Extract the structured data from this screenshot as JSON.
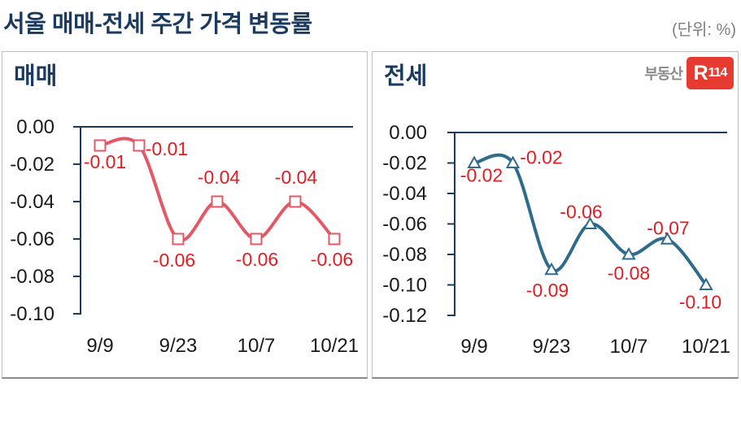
{
  "header": {
    "title": "서울 매매-전세 주간 가격 변동률",
    "unit_label": "(단위: %)"
  },
  "brand": {
    "prefix": "부동산",
    "mark_r": "R",
    "mark_num": "114"
  },
  "colors": {
    "title_navy": "#1b3a5f",
    "axis_navy": "#1b3a5f",
    "sale_line": "#e25864",
    "jeonse_line": "#2e6b8c",
    "data_label_red": "#e01d23",
    "tick_label_black": "#1a1a1a",
    "brand_red": "#e73a30",
    "brand_gray": "#8a8a8a"
  },
  "chart_data": [
    {
      "type": "line",
      "panel_title": "매매",
      "x_tick_labels": [
        "9/9",
        "9/23",
        "10/7",
        "10/21"
      ],
      "x_tick_point_indices": [
        0,
        2,
        4,
        6
      ],
      "values": [
        -0.01,
        -0.01,
        -0.06,
        -0.04,
        -0.06,
        -0.04,
        -0.06
      ],
      "data_labels": [
        "-0.01",
        "-0.01",
        "-0.06",
        "-0.04",
        "-0.06",
        "-0.04",
        "-0.06"
      ],
      "y_tick_labels": [
        "0.00",
        "-0.02",
        "-0.04",
        "-0.06",
        "-0.08",
        "-0.10"
      ],
      "y_tick_step": 0.02,
      "ylim": [
        -0.1,
        0.0
      ],
      "line_color": "#e25864",
      "marker": "square",
      "marker_fill": "#ffffff",
      "data_label_color": "#e01d23",
      "axis_color": "#1b3a5f",
      "grid": "none",
      "legend": "none"
    },
    {
      "type": "line",
      "panel_title": "전세",
      "x_tick_labels": [
        "9/9",
        "9/23",
        "10/7",
        "10/21"
      ],
      "x_tick_point_indices": [
        0,
        2,
        4,
        6
      ],
      "values": [
        -0.02,
        -0.02,
        -0.09,
        -0.06,
        -0.08,
        -0.07,
        -0.1
      ],
      "data_labels": [
        "-0.02",
        "-0.02",
        "-0.09",
        "-0.06",
        "-0.08",
        "-0.07",
        "-0.10"
      ],
      "y_tick_labels": [
        "0.00",
        "-0.02",
        "-0.04",
        "-0.06",
        "-0.08",
        "-0.10",
        "-0.12"
      ],
      "y_tick_step": 0.02,
      "ylim": [
        -0.12,
        0.0
      ],
      "line_color": "#2e6b8c",
      "marker": "triangle",
      "marker_fill": "#ffffff",
      "data_label_color": "#e01d23",
      "axis_color": "#1b3a5f",
      "grid": "none",
      "legend": "none"
    }
  ]
}
